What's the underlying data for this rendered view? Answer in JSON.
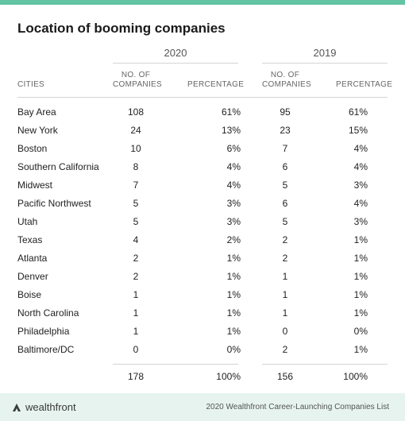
{
  "title": "Location of booming companies",
  "years": {
    "y2020": "2020",
    "y2019": "2019"
  },
  "headers": {
    "cities": "CITIES",
    "companies_l1": "NO. OF",
    "companies_l2": "COMPANIES",
    "percentage": "PERCENTAGE"
  },
  "rows": [
    {
      "city": "Bay Area",
      "n2020": "108",
      "p2020": "61%",
      "n2019": "95",
      "p2019": "61%"
    },
    {
      "city": "New York",
      "n2020": "24",
      "p2020": "13%",
      "n2019": "23",
      "p2019": "15%"
    },
    {
      "city": "Boston",
      "n2020": "10",
      "p2020": "6%",
      "n2019": "7",
      "p2019": "4%"
    },
    {
      "city": "Southern California",
      "n2020": "8",
      "p2020": "4%",
      "n2019": "6",
      "p2019": "4%"
    },
    {
      "city": "Midwest",
      "n2020": "7",
      "p2020": "4%",
      "n2019": "5",
      "p2019": "3%"
    },
    {
      "city": "Pacific Northwest",
      "n2020": "5",
      "p2020": "3%",
      "n2019": "6",
      "p2019": "4%"
    },
    {
      "city": "Utah",
      "n2020": "5",
      "p2020": "3%",
      "n2019": "5",
      "p2019": "3%"
    },
    {
      "city": "Texas",
      "n2020": "4",
      "p2020": "2%",
      "n2019": "2",
      "p2019": "1%"
    },
    {
      "city": "Atlanta",
      "n2020": "2",
      "p2020": "1%",
      "n2019": "2",
      "p2019": "1%"
    },
    {
      "city": "Denver",
      "n2020": "2",
      "p2020": "1%",
      "n2019": "1",
      "p2019": "1%"
    },
    {
      "city": "Boise",
      "n2020": "1",
      "p2020": "1%",
      "n2019": "1",
      "p2019": "1%"
    },
    {
      "city": "North Carolina",
      "n2020": "1",
      "p2020": "1%",
      "n2019": "1",
      "p2019": "1%"
    },
    {
      "city": "Philadelphia",
      "n2020": "1",
      "p2020": "1%",
      "n2019": "0",
      "p2019": "0%"
    },
    {
      "city": "Baltimore/DC",
      "n2020": "0",
      "p2020": "0%",
      "n2019": "2",
      "p2019": "1%"
    }
  ],
  "totals": {
    "n2020": "178",
    "p2020": "100%",
    "n2019": "156",
    "p2019": "100%"
  },
  "footer": {
    "logo_text": "wealthfront",
    "logo_icon": "wealthfront-logo-icon",
    "source": "2020 Wealthfront Career-Launching Companies List"
  },
  "colors": {
    "accent": "#62c4a3",
    "footer_bg": "#e6f3ee"
  }
}
